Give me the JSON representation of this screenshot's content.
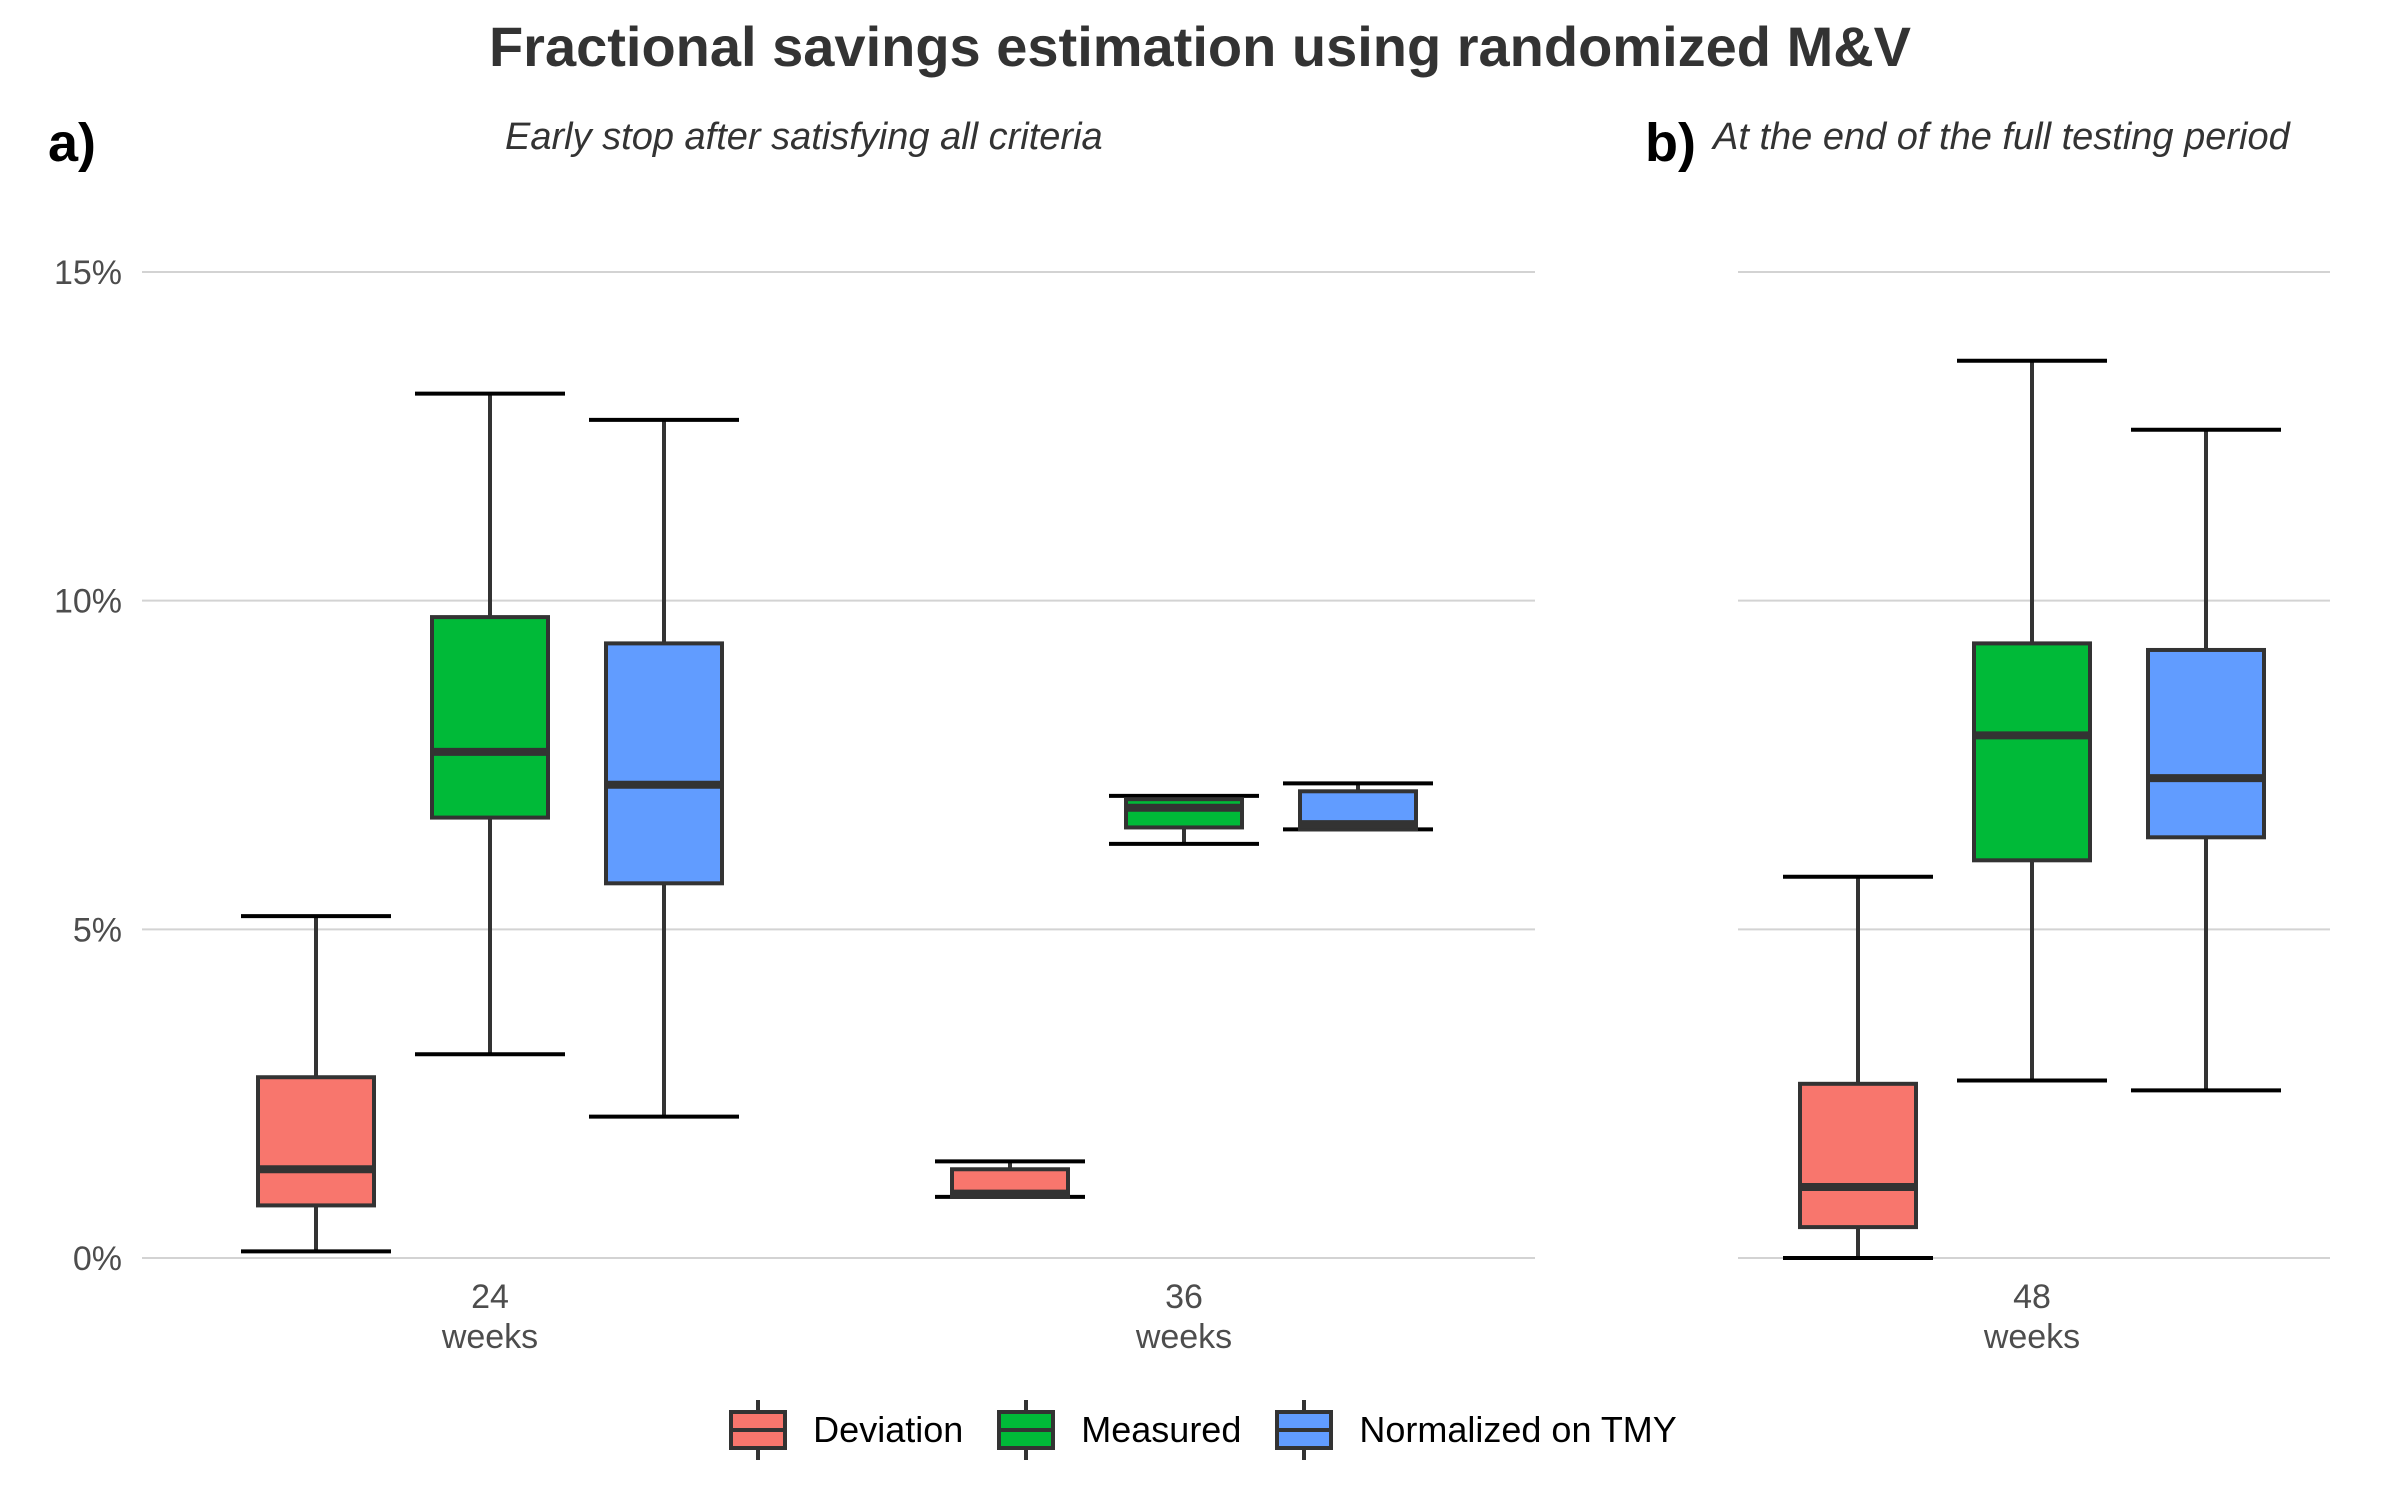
{
  "title": "Fractional savings estimation using randomized M&V",
  "chart_data": {
    "type": "boxplot",
    "title": "Fractional savings estimation using randomized M&V",
    "ylim": [
      0,
      0.15
    ],
    "y_ticks": [
      "0%",
      "5%",
      "10%",
      "15%"
    ],
    "y_tick_values": [
      0,
      0.05,
      0.1,
      0.15
    ],
    "grid": true,
    "legend_position": "bottom",
    "series_names": [
      "Deviation",
      "Measured",
      "Normalized on TMY"
    ],
    "series_colors": [
      "#F8766D",
      "#00BA38",
      "#619CFF"
    ],
    "panels": [
      {
        "tag": "a)",
        "subtitle": "Early stop after satisfying all criteria",
        "groups": [
          {
            "x_label": "24",
            "x_unit": "weeks",
            "boxes": [
              {
                "series": "Deviation",
                "min": 0.001,
                "q1": 0.008,
                "median": 0.0135,
                "q3": 0.0275,
                "max": 0.052
              },
              {
                "series": "Measured",
                "min": 0.031,
                "q1": 0.067,
                "median": 0.077,
                "q3": 0.0975,
                "max": 0.1315
              },
              {
                "series": "Normalized on TMY",
                "min": 0.0215,
                "q1": 0.057,
                "median": 0.072,
                "q3": 0.0935,
                "max": 0.1275
              }
            ]
          },
          {
            "x_label": "36",
            "x_unit": "weeks",
            "boxes": [
              {
                "series": "Deviation",
                "min": 0.0093,
                "q1": 0.0093,
                "median": 0.0098,
                "q3": 0.0135,
                "max": 0.0147
              },
              {
                "series": "Measured",
                "min": 0.063,
                "q1": 0.0655,
                "median": 0.0685,
                "q3": 0.0698,
                "max": 0.0703
              },
              {
                "series": "Normalized on TMY",
                "min": 0.0652,
                "q1": 0.0652,
                "median": 0.066,
                "q3": 0.071,
                "max": 0.0722
              }
            ]
          }
        ]
      },
      {
        "tag": "b)",
        "subtitle": "At the end of the full testing period",
        "groups": [
          {
            "x_label": "48",
            "x_unit": "weeks",
            "boxes": [
              {
                "series": "Deviation",
                "min": 0.0,
                "q1": 0.0047,
                "median": 0.0108,
                "q3": 0.0265,
                "max": 0.058
              },
              {
                "series": "Measured",
                "min": 0.027,
                "q1": 0.0605,
                "median": 0.0795,
                "q3": 0.0935,
                "max": 0.1365
              },
              {
                "series": "Normalized on TMY",
                "min": 0.0255,
                "q1": 0.064,
                "median": 0.073,
                "q3": 0.0925,
                "max": 0.126
              }
            ]
          }
        ]
      }
    ]
  }
}
